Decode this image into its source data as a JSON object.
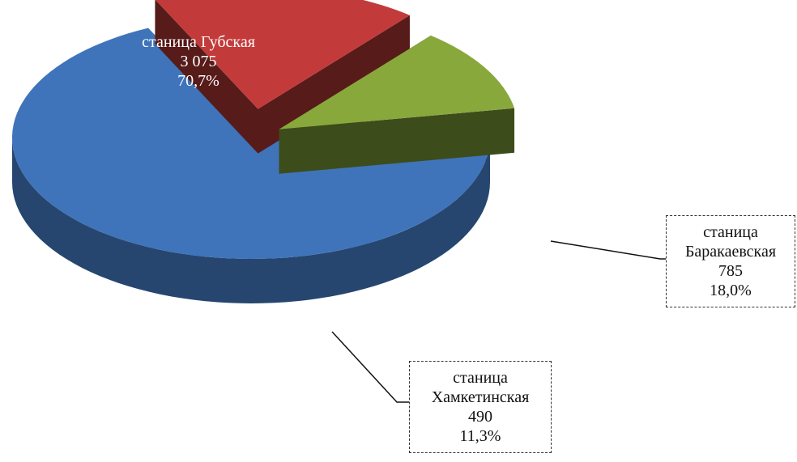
{
  "chart_data": {
    "type": "pie3d",
    "categories": [
      "станица Губская",
      "станица Баракаевская",
      "станица Хамкетинская"
    ],
    "values": [
      3075,
      785,
      490
    ],
    "value_labels": [
      "3 075",
      "785",
      "490"
    ],
    "percents": [
      70.7,
      18.0,
      11.3
    ],
    "percent_labels": [
      "70,7%",
      "18,0%",
      "11,3%"
    ],
    "colors": [
      "#3f74ba",
      "#c23b3a",
      "#88a83c"
    ]
  }
}
